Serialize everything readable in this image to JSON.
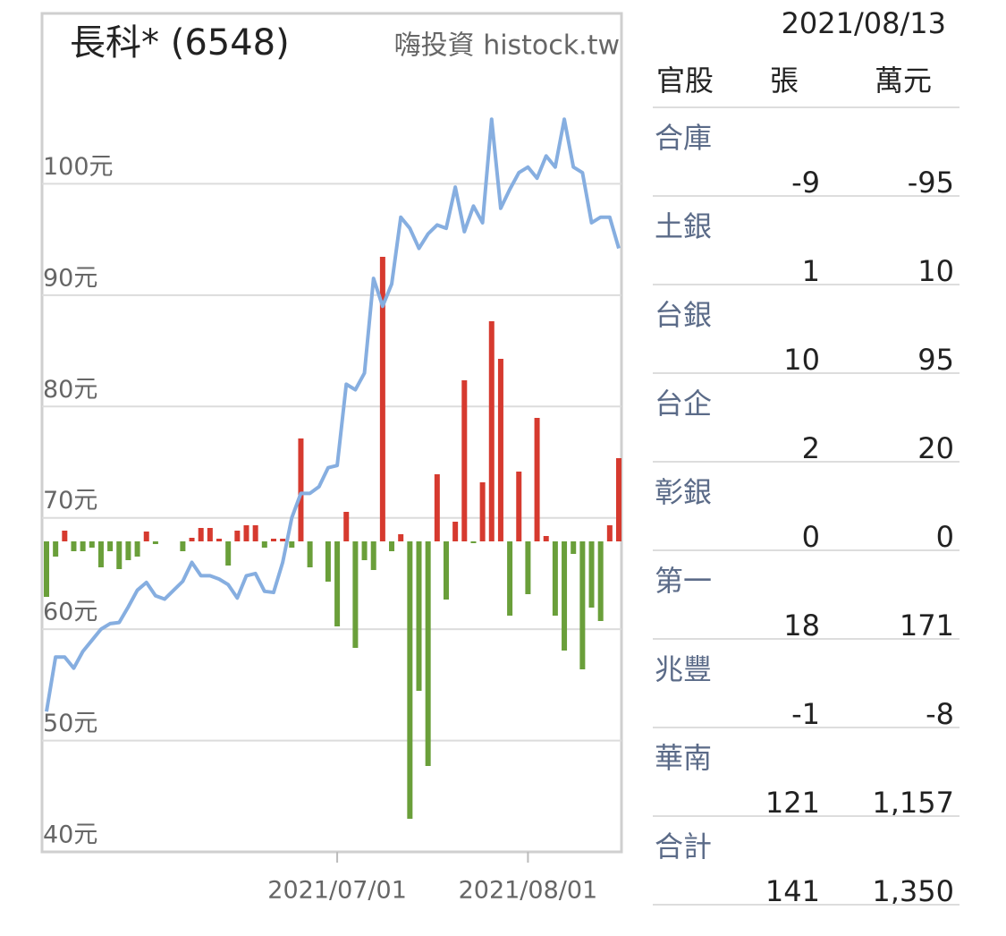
{
  "chart_data": {
    "type": "combo",
    "title": "長科* (6548)",
    "source": "嗨投資 histock.tw",
    "categories": [
      null,
      null,
      null,
      null,
      null,
      null,
      null,
      null,
      null,
      null,
      null,
      null,
      null,
      null,
      null,
      null,
      null,
      null,
      null,
      null,
      null,
      null,
      null,
      null,
      null,
      null,
      null,
      null,
      null,
      null,
      null,
      null,
      "2021/07/01",
      null,
      null,
      null,
      null,
      null,
      null,
      null,
      null,
      null,
      null,
      null,
      null,
      null,
      null,
      null,
      null,
      null,
      null,
      null,
      null,
      "2021/08/01",
      null,
      null,
      null,
      null,
      null,
      null,
      null,
      null,
      null,
      null
    ],
    "ylim": [
      40,
      115.3
    ],
    "yticks": [
      {
        "value": 40,
        "label": "40元"
      },
      {
        "value": 50,
        "label": "50元"
      },
      {
        "value": 60,
        "label": "60元"
      },
      {
        "value": 70,
        "label": "70元"
      },
      {
        "value": 80,
        "label": "80元"
      },
      {
        "value": 90,
        "label": "90元"
      },
      {
        "value": 100,
        "label": "100元"
      }
    ],
    "y2lim": [
      -347,
      590
    ],
    "grid": true,
    "series": [
      {
        "type": "bar",
        "axis": "y2",
        "color": "#d63a2f",
        "negative_color": "#6a9f3a",
        "values": [
          -62,
          -17,
          12,
          -11,
          -11,
          -7,
          -29,
          -11,
          -31,
          -21,
          -17,
          11,
          -3,
          0,
          0,
          -11,
          4,
          15,
          15,
          3,
          -27,
          12,
          18,
          18,
          -7,
          3,
          3,
          -7,
          115,
          -29,
          0,
          -45,
          -95,
          33,
          -119,
          -21,
          -32,
          318,
          -11,
          8,
          -310,
          -167,
          -251,
          75,
          -65,
          22,
          180,
          -2,
          66,
          246,
          204,
          -83,
          78,
          -59,
          138,
          6,
          -83,
          -122,
          -14,
          -143,
          -74,
          -89,
          18,
          93
        ]
      },
      {
        "type": "line",
        "axis": "y",
        "color": "#86aee0",
        "values": [
          52.6,
          57.5,
          57.5,
          56.5,
          58,
          59,
          60,
          60.5,
          60.6,
          62,
          63.5,
          64.2,
          63,
          62.7,
          63.5,
          64.3,
          66,
          64.8,
          64.8,
          64.5,
          64,
          62.8,
          64.8,
          65,
          63.4,
          63.3,
          66,
          70,
          72.2,
          72.2,
          72.8,
          74.5,
          74.7,
          82,
          81.5,
          83,
          91.5,
          89,
          91,
          97,
          96,
          94.2,
          95.5,
          96.3,
          96,
          99.7,
          95.7,
          98,
          96.5,
          105.8,
          97.8,
          99.5,
          101,
          101.5,
          100.5,
          102.5,
          101.5,
          105.8,
          101.5,
          101,
          96.5,
          97,
          97,
          94.2
        ]
      }
    ]
  },
  "table": {
    "date": "2021/08/13",
    "columns": [
      "官股",
      "張",
      "萬元"
    ],
    "rows": [
      [
        "合庫",
        "-9",
        "-95"
      ],
      [
        "土銀",
        "1",
        "10"
      ],
      [
        "台銀",
        "10",
        "95"
      ],
      [
        "台企",
        "2",
        "20"
      ],
      [
        "彰銀",
        "0",
        "0"
      ],
      [
        "第一",
        "18",
        "171"
      ],
      [
        "兆豐",
        "-1",
        "-8"
      ],
      [
        "華南",
        "121",
        "1,157"
      ],
      [
        "合計",
        "141",
        "1,350"
      ]
    ]
  }
}
